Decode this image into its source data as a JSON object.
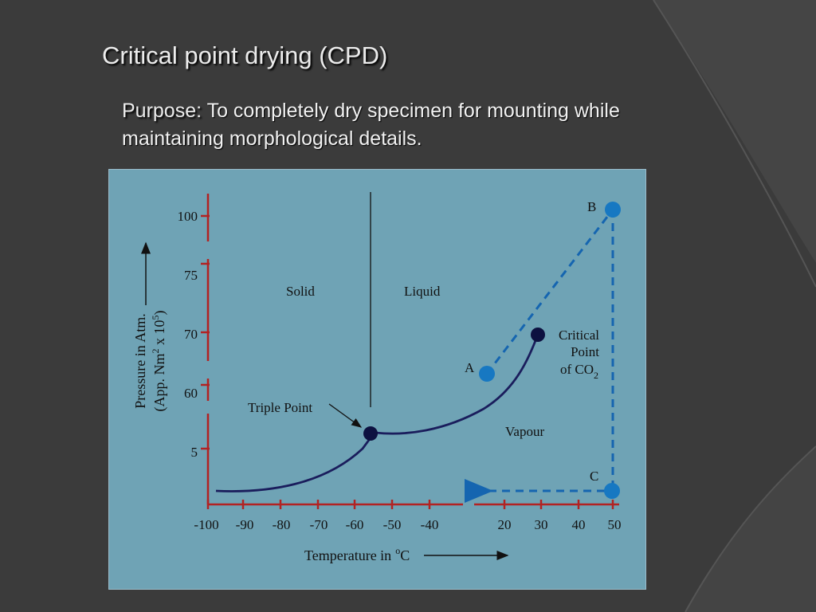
{
  "slide": {
    "title": "Critical point drying (CPD)",
    "purpose_label": "Purpose:",
    "purpose_text": "To completely dry specimen for mounting while maintaining morphological details."
  },
  "colors": {
    "background": "#3b3b3b",
    "panel": "#6fa3b5",
    "curve": "#1a1d5c",
    "point_dark": "#0d1140",
    "point_blue": "#1778c2",
    "axis_red": "#b22222",
    "dashed_path": "#1565b0"
  },
  "diagram": {
    "y_axis_label_line1": "Pressure in Atm.",
    "y_axis_label_line2": "(App. Nm",
    "y_axis_label_sup1": "2",
    "y_axis_label_mid": " x 10",
    "y_axis_label_sup2": "5",
    "y_axis_label_end": ")",
    "x_axis_label": "Temperature in",
    "x_axis_unit_sup": "o",
    "x_axis_unit": "C",
    "y_ticks": [
      "100",
      "75",
      "70",
      "60",
      "5"
    ],
    "x_ticks_left": [
      "-100",
      "-90",
      "-80",
      "-70",
      "-60",
      "-50",
      "-40"
    ],
    "x_ticks_right": [
      "20",
      "30",
      "40",
      "50"
    ],
    "region_solid": "Solid",
    "region_liquid": "Liquid",
    "region_vapour": "Vapour",
    "triple_point": "Triple Point",
    "critical_line1": "Critical",
    "critical_line2": "Point",
    "critical_line3": "of CO",
    "critical_sub": "2",
    "point_a": "A",
    "point_b": "B",
    "point_c": "C"
  }
}
